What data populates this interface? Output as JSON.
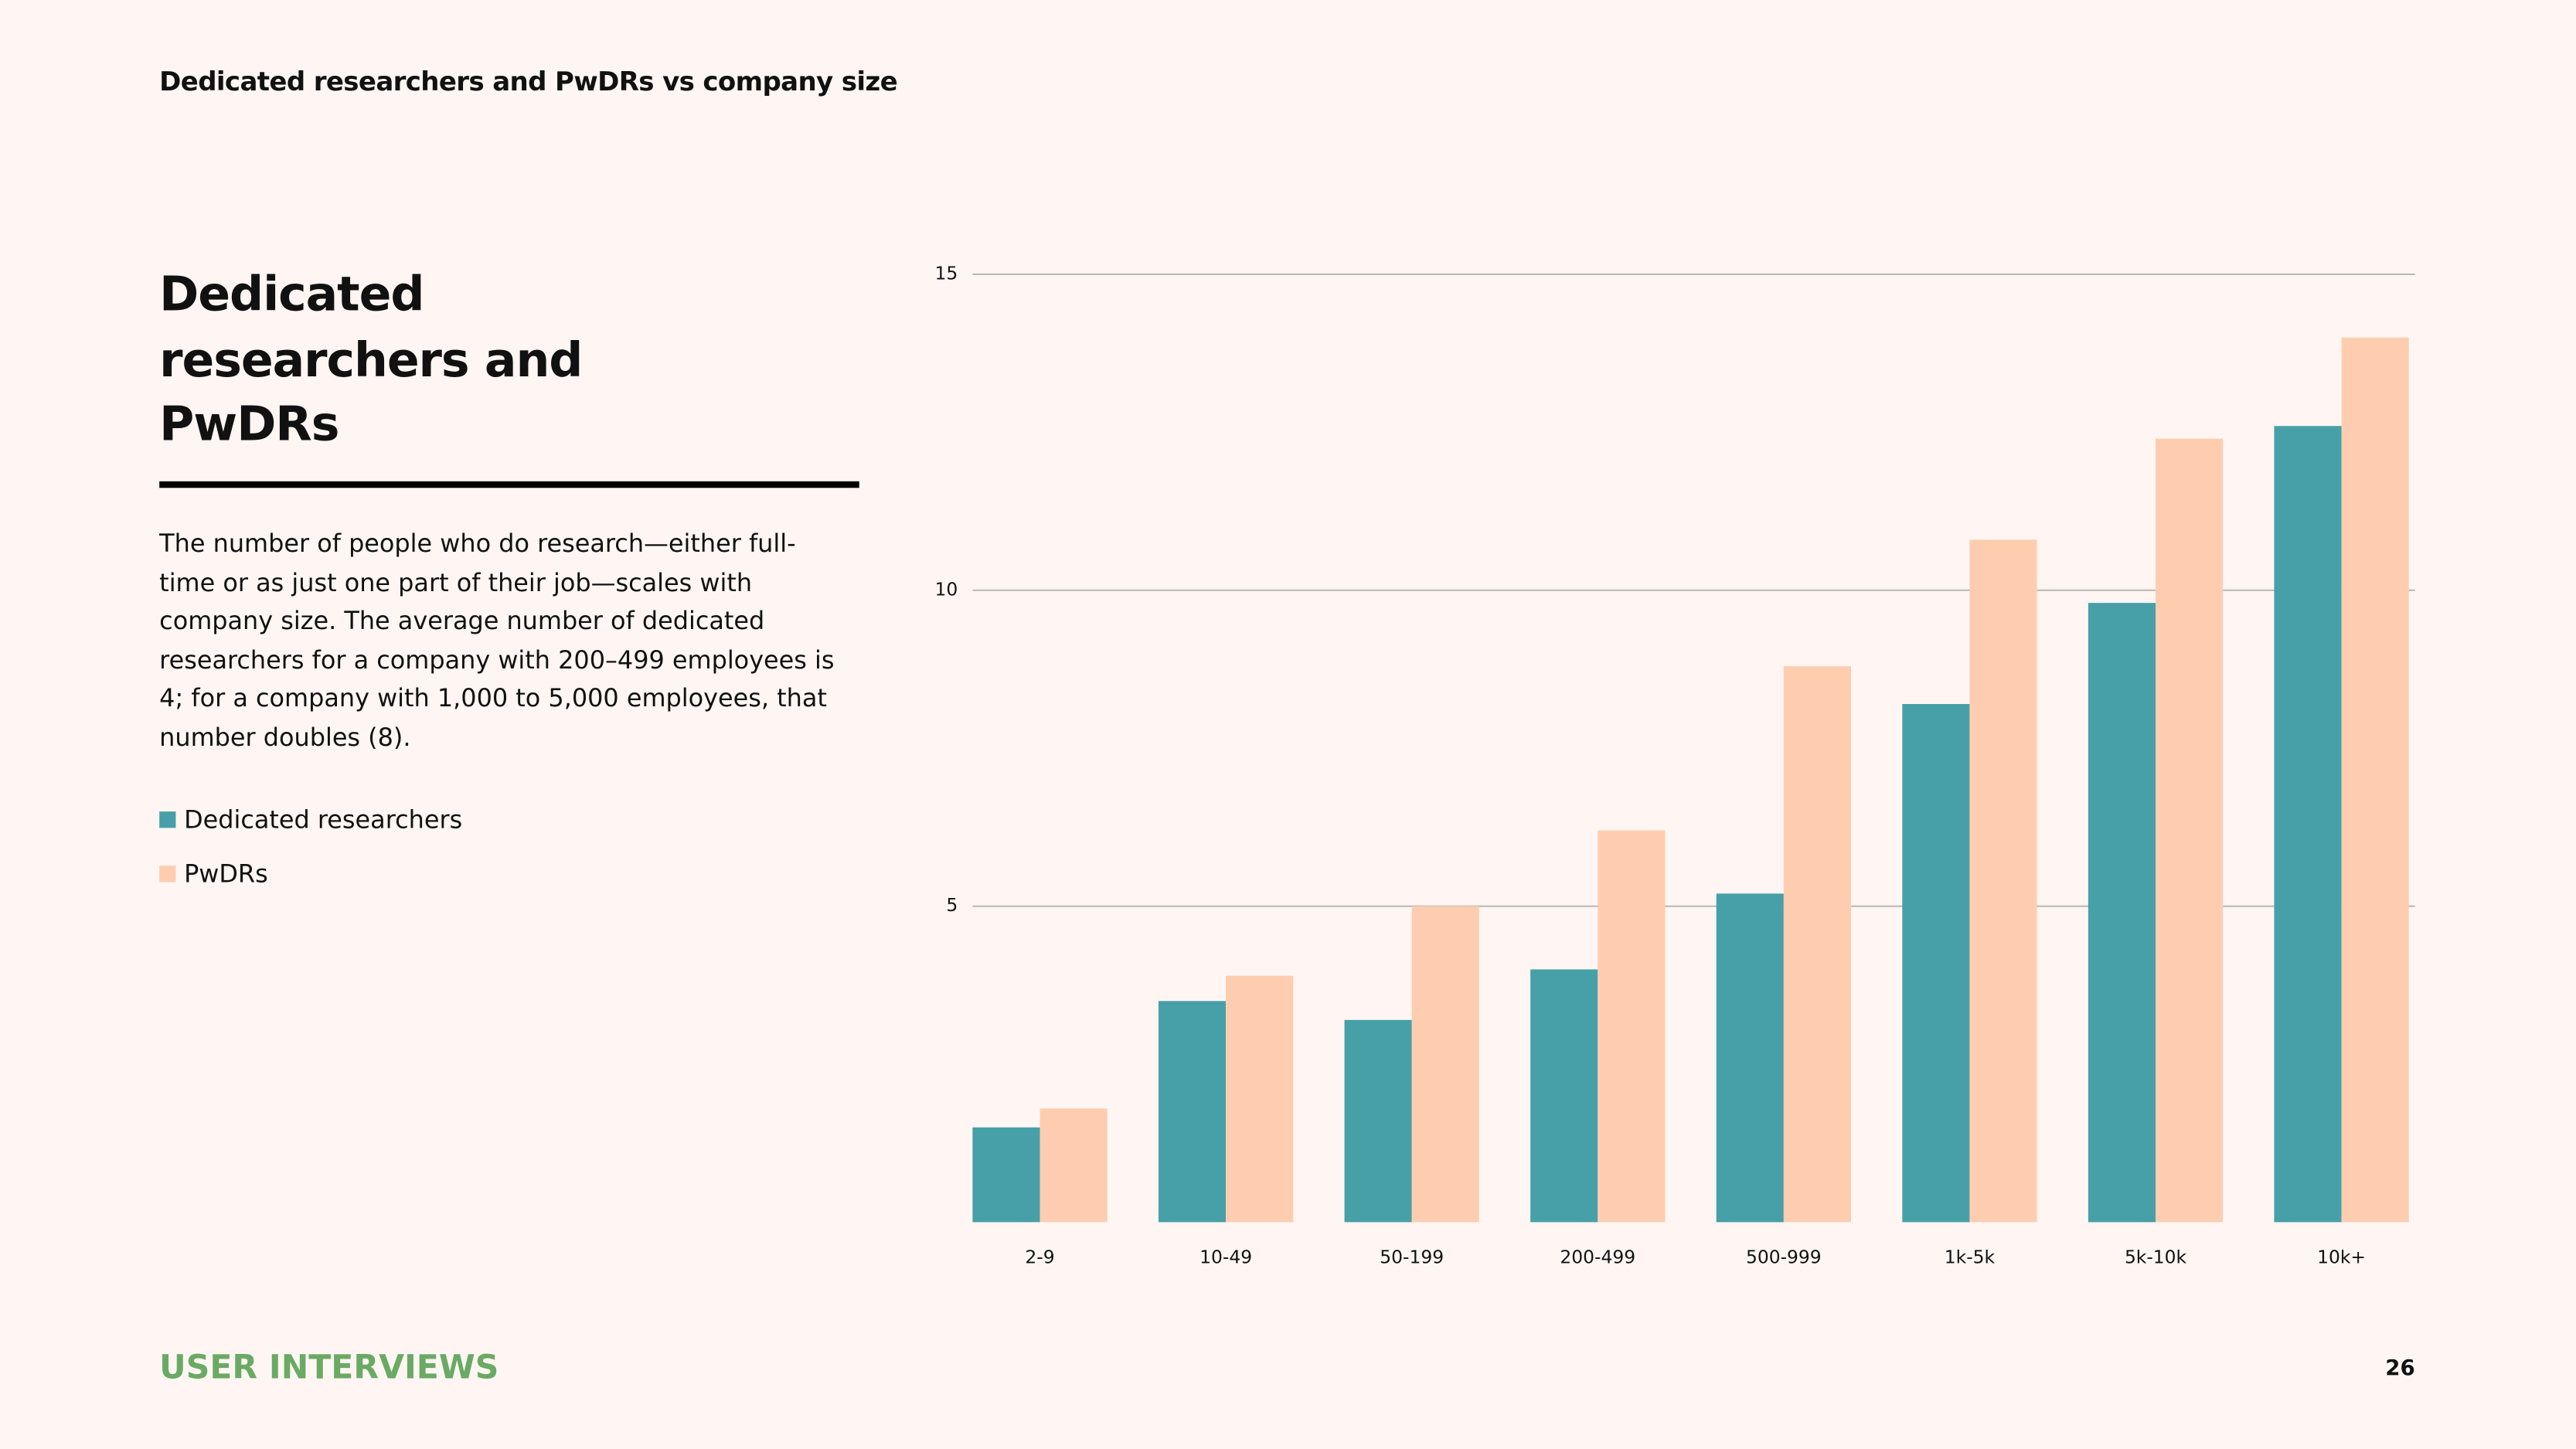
{
  "header": {
    "title": "Dedicated researchers and PwDRs vs company size"
  },
  "sidebar": {
    "heading": "Dedicated researchers and PwDRs",
    "paragraph": "The number of people who do research—either full-time or as just one part of their job—scales with company size. The average number of dedicated researchers for a company with 200–499 employees is 4; for a company with 1,000 to 5,000 employees, that number doubles (8)."
  },
  "chart_data": {
    "type": "bar",
    "categories": [
      "2-9",
      "10-49",
      "50-199",
      "200-499",
      "500-999",
      "1k-5k",
      "5k-10k",
      "10k+"
    ],
    "series": [
      {
        "name": "Dedicated researchers",
        "color": "#47a0a8",
        "values": [
          1.5,
          3.5,
          3.2,
          4.0,
          5.2,
          8.2,
          9.8,
          12.6
        ]
      },
      {
        "name": "PwDRs",
        "color": "#fecdb0",
        "values": [
          1.8,
          3.9,
          5.0,
          6.2,
          8.8,
          10.8,
          12.4,
          14.0
        ]
      }
    ],
    "ylim": [
      0,
      15
    ],
    "yticks": [
      5,
      10,
      15
    ],
    "grid": true
  },
  "footer": {
    "brand": "USER INTERVIEWS",
    "page": "26"
  }
}
